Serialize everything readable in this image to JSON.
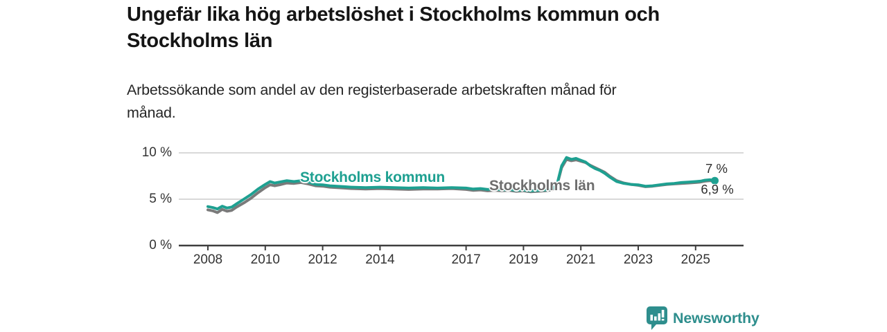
{
  "header": {
    "title_lines": [
      "Ungefär lika hög arbetslöshet i Stockholms kommun och",
      "Stockholms län"
    ],
    "subtitle_lines": [
      "Arbetssökande som andel av den registerbaserade arbetskraften månad för",
      "månad."
    ]
  },
  "footer": {
    "brand": "Newsworthy",
    "logo_icon": "bar-chart-speech-bubble",
    "brand_color": "#2e8e8d"
  },
  "chart_data": {
    "type": "line",
    "title": "Ungefär lika hög arbetslöshet i Stockholms kommun och Stockholms län",
    "subtitle": "Arbetssökande som andel av den registerbaserade arbetskraften månad för månad.",
    "unit": "%",
    "grid": true,
    "legend": "inline-labels",
    "xlim": [
      2007.0,
      2026.6
    ],
    "ylim": [
      0,
      10.5
    ],
    "x_ticks": [
      "2008",
      "2010",
      "2012",
      "2014",
      "2017",
      "2019",
      "2021",
      "2023",
      "2025"
    ],
    "y_ticks": [
      {
        "value": 0,
        "label": "0 %"
      },
      {
        "value": 5,
        "label": "5 %"
      },
      {
        "value": 10,
        "label": "10 %"
      }
    ],
    "axis_color": "#3d3d3d",
    "grid_color": "#cccccc",
    "series": [
      {
        "name": "Stockholms kommun",
        "color": "#1ea091",
        "label_color": "#1ea091",
        "end_label": "7 %",
        "end_value": 7.0,
        "points": [
          [
            2008.0,
            4.2
          ],
          [
            2008.17,
            4.1
          ],
          [
            2008.33,
            3.95
          ],
          [
            2008.5,
            4.25
          ],
          [
            2008.67,
            4.05
          ],
          [
            2008.83,
            4.15
          ],
          [
            2009.0,
            4.5
          ],
          [
            2009.25,
            5.0
          ],
          [
            2009.5,
            5.5
          ],
          [
            2009.75,
            6.1
          ],
          [
            2010.0,
            6.6
          ],
          [
            2010.17,
            6.9
          ],
          [
            2010.33,
            6.75
          ],
          [
            2010.5,
            6.85
          ],
          [
            2010.75,
            7.0
          ],
          [
            2011.0,
            6.9
          ],
          [
            2011.25,
            7.0
          ],
          [
            2011.5,
            6.85
          ],
          [
            2011.75,
            6.6
          ],
          [
            2012.0,
            6.55
          ],
          [
            2012.25,
            6.45
          ],
          [
            2012.5,
            6.4
          ],
          [
            2012.75,
            6.35
          ],
          [
            2013.0,
            6.3
          ],
          [
            2013.5,
            6.25
          ],
          [
            2014.0,
            6.3
          ],
          [
            2014.5,
            6.25
          ],
          [
            2015.0,
            6.2
          ],
          [
            2015.5,
            6.25
          ],
          [
            2016.0,
            6.2
          ],
          [
            2016.5,
            6.25
          ],
          [
            2017.0,
            6.2
          ],
          [
            2017.25,
            6.1
          ],
          [
            2017.5,
            6.15
          ],
          [
            2017.75,
            6.05
          ],
          [
            2018.0,
            6.1
          ],
          [
            2018.25,
            6.0
          ],
          [
            2018.5,
            6.05
          ],
          [
            2018.75,
            5.95
          ],
          [
            2019.0,
            6.0
          ],
          [
            2019.25,
            5.9
          ],
          [
            2019.5,
            5.95
          ],
          [
            2019.75,
            6.0
          ],
          [
            2020.0,
            6.1
          ],
          [
            2020.17,
            6.6
          ],
          [
            2020.33,
            8.6
          ],
          [
            2020.5,
            9.5
          ],
          [
            2020.67,
            9.3
          ],
          [
            2020.83,
            9.4
          ],
          [
            2021.0,
            9.2
          ],
          [
            2021.17,
            9.0
          ],
          [
            2021.33,
            8.6
          ],
          [
            2021.5,
            8.3
          ],
          [
            2021.67,
            8.1
          ],
          [
            2021.83,
            7.8
          ],
          [
            2022.0,
            7.4
          ],
          [
            2022.25,
            6.9
          ],
          [
            2022.5,
            6.7
          ],
          [
            2022.75,
            6.6
          ],
          [
            2023.0,
            6.55
          ],
          [
            2023.25,
            6.4
          ],
          [
            2023.5,
            6.45
          ],
          [
            2023.75,
            6.55
          ],
          [
            2024.0,
            6.65
          ],
          [
            2024.25,
            6.7
          ],
          [
            2024.5,
            6.8
          ],
          [
            2024.75,
            6.85
          ],
          [
            2025.0,
            6.9
          ],
          [
            2025.17,
            6.95
          ],
          [
            2025.33,
            7.05
          ],
          [
            2025.5,
            7.1
          ],
          [
            2025.67,
            7.0
          ]
        ]
      },
      {
        "name": "Stockholms län",
        "color": "#7a7a7a",
        "label_color": "#6e6e6e",
        "end_label": "6,9 %",
        "end_value": 6.9,
        "points": [
          [
            2008.0,
            3.85
          ],
          [
            2008.17,
            3.75
          ],
          [
            2008.33,
            3.55
          ],
          [
            2008.5,
            3.9
          ],
          [
            2008.67,
            3.7
          ],
          [
            2008.83,
            3.8
          ],
          [
            2009.0,
            4.15
          ],
          [
            2009.25,
            4.6
          ],
          [
            2009.5,
            5.1
          ],
          [
            2009.75,
            5.7
          ],
          [
            2010.0,
            6.25
          ],
          [
            2010.17,
            6.55
          ],
          [
            2010.33,
            6.45
          ],
          [
            2010.5,
            6.55
          ],
          [
            2010.75,
            6.75
          ],
          [
            2011.0,
            6.7
          ],
          [
            2011.25,
            6.8
          ],
          [
            2011.5,
            6.65
          ],
          [
            2011.75,
            6.45
          ],
          [
            2012.0,
            6.4
          ],
          [
            2012.25,
            6.3
          ],
          [
            2012.5,
            6.25
          ],
          [
            2012.75,
            6.2
          ],
          [
            2013.0,
            6.15
          ],
          [
            2013.5,
            6.1
          ],
          [
            2014.0,
            6.15
          ],
          [
            2014.5,
            6.1
          ],
          [
            2015.0,
            6.05
          ],
          [
            2015.5,
            6.1
          ],
          [
            2016.0,
            6.1
          ],
          [
            2016.5,
            6.15
          ],
          [
            2017.0,
            6.05
          ],
          [
            2017.25,
            5.95
          ],
          [
            2017.5,
            6.0
          ],
          [
            2017.75,
            5.9
          ],
          [
            2018.0,
            5.95
          ],
          [
            2018.25,
            5.9
          ],
          [
            2018.5,
            5.95
          ],
          [
            2018.75,
            5.85
          ],
          [
            2019.0,
            5.9
          ],
          [
            2019.25,
            5.8
          ],
          [
            2019.5,
            5.85
          ],
          [
            2019.75,
            5.9
          ],
          [
            2020.0,
            6.0
          ],
          [
            2020.17,
            6.5
          ],
          [
            2020.33,
            8.4
          ],
          [
            2020.5,
            9.3
          ],
          [
            2020.67,
            9.15
          ],
          [
            2020.83,
            9.25
          ],
          [
            2021.0,
            9.1
          ],
          [
            2021.17,
            8.95
          ],
          [
            2021.33,
            8.65
          ],
          [
            2021.5,
            8.4
          ],
          [
            2021.67,
            8.15
          ],
          [
            2021.83,
            7.9
          ],
          [
            2022.0,
            7.5
          ],
          [
            2022.25,
            7.0
          ],
          [
            2022.5,
            6.75
          ],
          [
            2022.75,
            6.6
          ],
          [
            2023.0,
            6.5
          ],
          [
            2023.25,
            6.35
          ],
          [
            2023.5,
            6.4
          ],
          [
            2023.75,
            6.5
          ],
          [
            2024.0,
            6.6
          ],
          [
            2024.25,
            6.65
          ],
          [
            2024.5,
            6.7
          ],
          [
            2024.75,
            6.75
          ],
          [
            2025.0,
            6.8
          ],
          [
            2025.17,
            6.85
          ],
          [
            2025.33,
            6.95
          ],
          [
            2025.5,
            7.0
          ],
          [
            2025.67,
            6.9
          ]
        ]
      }
    ]
  }
}
